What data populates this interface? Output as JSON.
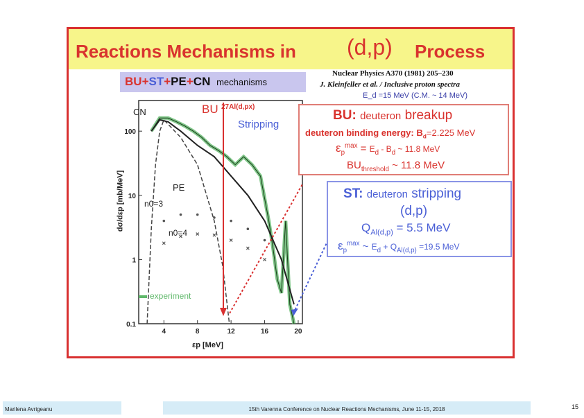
{
  "slide": {
    "title_part1": "Reactions Mechanisms in",
    "title_part2": "(d,p)",
    "title_part3": "Process",
    "mechanisms": {
      "bu": "BU",
      "plus1": "+",
      "st": "ST",
      "plus2": "+",
      "pe": "PE",
      "plus3": "+",
      "cn": "CN",
      "suffix": "mechanisms"
    },
    "reference_line1": "Nuclear Physics A370 (1981) 205–230",
    "reference_line2": "J. Kleinfeller et al. / Inclusive proton spectra",
    "energy_line": "E_d =15 MeV (C.M. ~ 14 MeV)",
    "bu_box": {
      "heading_prefix": "BU:",
      "heading_mid": "deuteron",
      "heading_end": "breakup",
      "binding_text": "deuteron binding energy: B",
      "binding_sub": "d",
      "binding_value": "=2.225 MeV",
      "eps_symbol": "ε",
      "eps_sub": "p",
      "eps_sup": "max",
      "eps_eq": " = ",
      "eps_rhs1": "E",
      "eps_rhs1_sub": "d",
      "eps_rhs2": " - B",
      "eps_rhs2_sub": "d",
      "eps_rhs3": " ~ 11.8 MeV",
      "thr_main": "BU",
      "thr_sub": "threshold",
      "thr_value": " ~ 11.8 MeV"
    },
    "st_box": {
      "heading_prefix": "ST:",
      "heading_mid": "deuteron",
      "heading_end": "stripping",
      "reaction": "(d,p)",
      "q_main": "Q",
      "q_sub": "Al(d,p)",
      "q_value": " = 5.5 MeV",
      "eps_symbol": "ε",
      "eps_sub": "p",
      "eps_sup": "max",
      "eps_sim": " ~ ",
      "eps_rhs1": "E",
      "eps_rhs1_sub": "d",
      "eps_rhs2": " + Q",
      "eps_rhs2_sub": "Al(d,p)",
      "eps_rhs3": " =19.5 MeV"
    },
    "plot_labels": {
      "cn": "CN",
      "bu": "BU",
      "reaction": "27Al(d,px)",
      "stripping": "Stripping",
      "pe": "PE",
      "n0_3": "n0=3",
      "n0_4": "n0=4",
      "experiment": "experiment",
      "y_axis": "dσ/dεp [mb/MeV]",
      "x_axis": "εp [MeV]"
    },
    "colors": {
      "title_red": "#d9332e",
      "band_yellow": "#f7f58a",
      "blue": "#4a5fd6",
      "experiment_green": "#5fb86a"
    }
  },
  "chart_data": {
    "type": "line",
    "x_label": "εp [MeV]",
    "y_label": "dσ/dεp [mb/MeV]",
    "x_ticks": [
      "4",
      "8",
      "12",
      "16",
      "20"
    ],
    "y_ticks": [
      "100",
      "10",
      "1",
      "0.1"
    ],
    "log_y": true,
    "xlim": [
      1,
      20.5
    ],
    "ylim": [
      0.1,
      300
    ],
    "series": [
      {
        "name": "experiment",
        "x": [
          2.5,
          3.5,
          4.5,
          5.5,
          6.5,
          7.5,
          8.5,
          9.5,
          10.5,
          11.5,
          12.5,
          13.5,
          14.5,
          15.5,
          16.5,
          17.0,
          17.5,
          18.0,
          18.5,
          19.0,
          19.5
        ],
        "y": [
          100,
          160,
          160,
          140,
          120,
          100,
          80,
          60,
          50,
          40,
          30,
          40,
          30,
          20,
          4,
          1.5,
          0.5,
          0.3,
          4,
          0.2,
          0.1
        ]
      },
      {
        "name": "BU",
        "x": [
          2.0,
          2.5,
          3.0,
          3.5,
          4.0,
          6.0,
          8.0,
          10.0,
          11.0,
          11.8
        ],
        "y": [
          0.1,
          3,
          30,
          100,
          150,
          80,
          30,
          4,
          0.8,
          0.1
        ]
      },
      {
        "name": "CN",
        "x": [
          2.5,
          3.5,
          4.5,
          6.0,
          8.0,
          10.0,
          12.0,
          14.0,
          16.0,
          18.0,
          19.5
        ],
        "y": [
          100,
          150,
          140,
          100,
          60,
          40,
          20,
          10,
          4,
          1,
          0.2
        ]
      },
      {
        "name": "n0=3",
        "x": [
          4.0,
          6.0,
          8.0,
          10.0,
          12.0,
          14.0,
          16.0
        ],
        "y": [
          4,
          5,
          5,
          4.5,
          4,
          3,
          2
        ]
      },
      {
        "name": "n0=4",
        "x": [
          4.0,
          6.0,
          8.0,
          10.0,
          12.0,
          14.0,
          16.0
        ],
        "y": [
          1.8,
          2.3,
          2.5,
          2.4,
          2,
          1.5,
          1
        ]
      }
    ]
  },
  "footer": {
    "author": "Marilena Avrigeanu",
    "conference": "15th Varenna Conference on Nuclear Reactions Mechanisms, June 11-15, 2018",
    "page": "15"
  }
}
